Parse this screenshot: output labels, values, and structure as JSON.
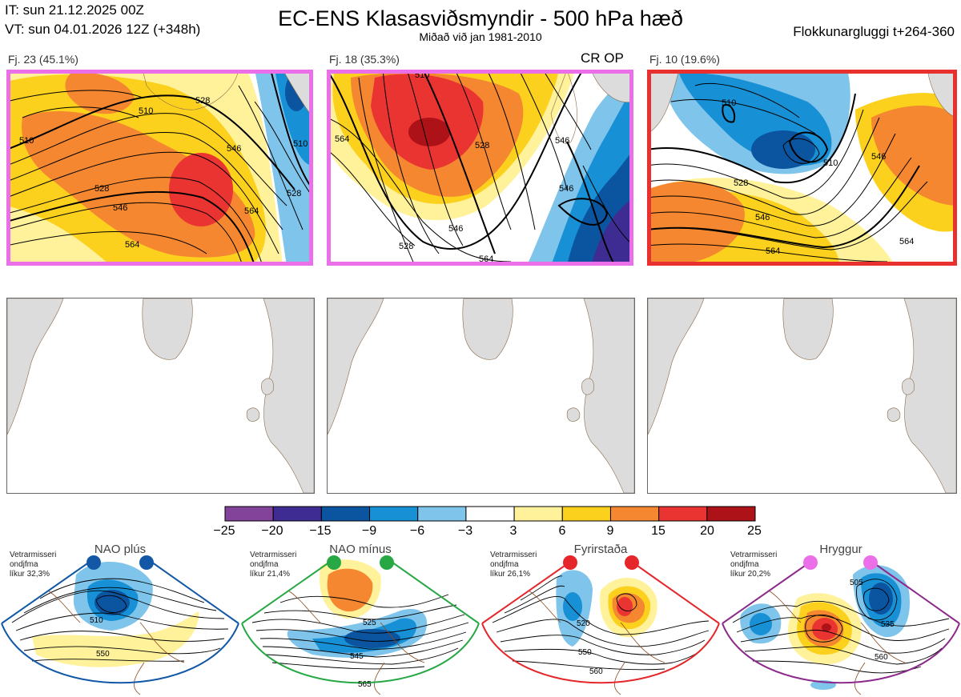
{
  "header": {
    "it_line": "IT: sun 21.12.2025 00Z",
    "vt_line": "VT: sun 04.01.2026 12Z  (+348h)",
    "title": "EC-ENS Klasasviðsmyndir - 500 hPa hæð",
    "subtitle": "Miðað við jan 1981-2010",
    "window_label": "Flokkunargluggi t+264-360"
  },
  "clusters": [
    {
      "label": "Fj. 23 (45.1%)",
      "frame_color": "#ea6fe8",
      "contours": [
        "510",
        "528",
        "546",
        "564",
        "510",
        "528",
        "546",
        "564",
        "510",
        "528"
      ]
    },
    {
      "label": "Fj. 18 (35.3%)",
      "frame_color": "#ea6fe8",
      "contours": [
        "528",
        "546",
        "564",
        "546",
        "528",
        "510",
        "546",
        "564"
      ]
    },
    {
      "label": "Fj. 10 (19.6%)",
      "frame_color": "#e8312e",
      "contours": [
        "510",
        "528",
        "546",
        "564",
        "510",
        "546",
        "564"
      ]
    }
  ],
  "cr_op_label": "CR OP",
  "colorbar": {
    "ticks": [
      "−25",
      "−20",
      "−15",
      "−9",
      "−6",
      "−3",
      "3",
      "6",
      "9",
      "15",
      "20",
      "25"
    ],
    "colors": [
      "#84439a",
      "#3f2c92",
      "#0b54a0",
      "#1890d6",
      "#7fc4ea",
      "#ffffff",
      "#fff29a",
      "#fcd11d",
      "#f4872f",
      "#e93431",
      "#ad1218"
    ]
  },
  "regimes": [
    {
      "title": "NAO plús",
      "info": [
        "Vetrarmisseri",
        "ondjfma",
        "líkur 32,3%"
      ],
      "color": "#1258a6",
      "dot_color": "#1258a6",
      "contours": [
        "510",
        "550"
      ]
    },
    {
      "title": "NAO mínus",
      "info": [
        "Vetrarmisseri",
        "ondjfma",
        "líkur 21,4%"
      ],
      "color": "#27a845",
      "dot_color": "#27a845",
      "contours": [
        "525",
        "545",
        "565"
      ]
    },
    {
      "title": "Fyrirstaða",
      "info": [
        "Vetrarmisseri",
        "ondjfma",
        "líkur 26,1%"
      ],
      "color": "#e5272b",
      "dot_color": "#e5272b",
      "contours": [
        "520",
        "550",
        "560"
      ]
    },
    {
      "title": "Hryggur",
      "info": [
        "Vetrarmisseri",
        "ondjfma",
        "líkur 20,2%"
      ],
      "color": "#8c2a8c",
      "dot_color": "#ea6fe8",
      "contours": [
        "505",
        "535",
        "560"
      ]
    }
  ]
}
